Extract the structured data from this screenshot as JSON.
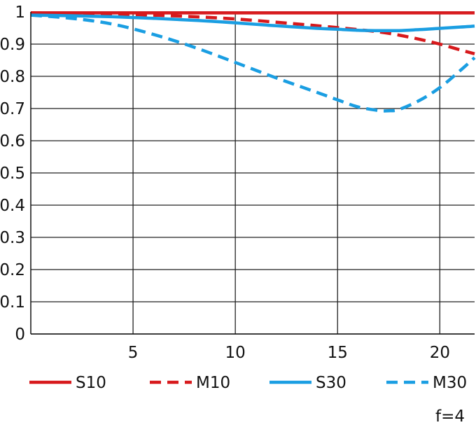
{
  "chart_data": {
    "type": "line",
    "title": "",
    "xlabel": "",
    "ylabel": "",
    "xlim": [
      0,
      21.7
    ],
    "ylim": [
      0,
      1
    ],
    "x_ticks": [
      5,
      10,
      15,
      20
    ],
    "x_tick_labels": [
      "5",
      "10",
      "15",
      "20"
    ],
    "y_ticks": [
      0,
      0.1,
      0.2,
      0.3,
      0.4,
      0.5,
      0.6,
      0.7,
      0.8,
      0.9,
      1
    ],
    "y_tick_labels": [
      "0",
      "0.1",
      "0.2",
      "0.3",
      "0.4",
      "0.5",
      "0.6",
      "0.7",
      "0.8",
      "0.9",
      "1"
    ],
    "grid": true,
    "legend_position": "bottom",
    "annotation": "f=4",
    "series": [
      {
        "name": "S10",
        "color": "#d7191c",
        "dash": false,
        "x": [
          0,
          2,
          4,
          6,
          8,
          10,
          12,
          14,
          16,
          18,
          20,
          21.7
        ],
        "y": [
          0.997,
          0.997,
          0.997,
          0.997,
          0.997,
          0.997,
          0.997,
          0.997,
          0.997,
          0.997,
          0.997,
          0.997
        ]
      },
      {
        "name": "M10",
        "color": "#d7191c",
        "dash": true,
        "x": [
          0,
          2,
          4,
          6,
          8,
          10,
          12,
          14,
          16,
          17,
          18,
          19,
          20,
          21,
          21.7
        ],
        "y": [
          0.997,
          0.995,
          0.993,
          0.99,
          0.985,
          0.978,
          0.968,
          0.957,
          0.945,
          0.938,
          0.928,
          0.915,
          0.9,
          0.882,
          0.87
        ]
      },
      {
        "name": "S30",
        "color": "#1a9ee2",
        "dash": false,
        "x": [
          0,
          2,
          4,
          6,
          8,
          10,
          12,
          14,
          15,
          16,
          17,
          18,
          19,
          20,
          21,
          21.7
        ],
        "y": [
          0.99,
          0.988,
          0.985,
          0.98,
          0.974,
          0.966,
          0.957,
          0.949,
          0.946,
          0.943,
          0.942,
          0.942,
          0.945,
          0.949,
          0.953,
          0.956
        ]
      },
      {
        "name": "M30",
        "color": "#1a9ee2",
        "dash": true,
        "x": [
          0,
          2,
          4,
          6,
          8,
          10,
          12,
          14,
          15,
          16,
          17,
          17.5,
          18,
          19,
          20,
          21,
          21.7
        ],
        "y": [
          0.99,
          0.98,
          0.962,
          0.93,
          0.89,
          0.843,
          0.795,
          0.75,
          0.727,
          0.705,
          0.694,
          0.693,
          0.697,
          0.725,
          0.765,
          0.818,
          0.858
        ]
      }
    ]
  }
}
